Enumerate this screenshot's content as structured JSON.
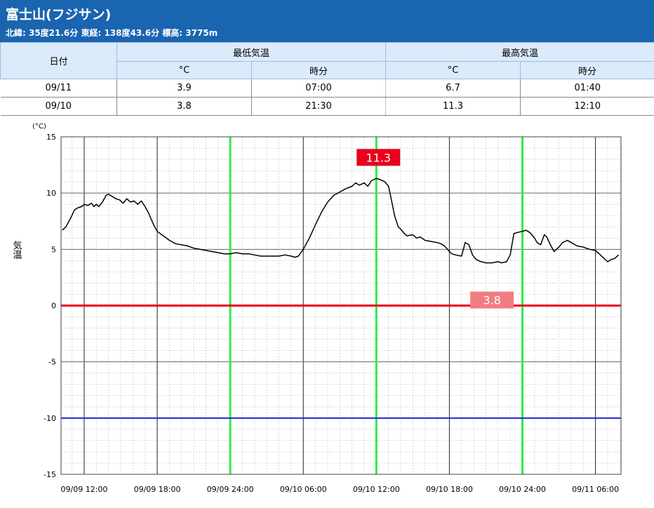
{
  "station": {
    "title": "富士山(フジサン)",
    "meta": "北緯: 35度21.6分 東経: 138度43.6分 標高: 3775m"
  },
  "table": {
    "date_header": "日付",
    "min_header": "最低気温",
    "max_header": "最高気温",
    "celsius_header": "°C",
    "time_header": "時分",
    "rows": [
      {
        "date": "09/11",
        "min_c": "3.9",
        "min_time": "07:00",
        "max_c": "6.7",
        "max_time": "01:40"
      },
      {
        "date": "09/10",
        "min_c": "3.8",
        "min_time": "21:30",
        "max_c": "11.3",
        "max_time": "12:10"
      }
    ]
  },
  "chart_data": {
    "type": "line",
    "unit": "(°C)",
    "ylabel": "気温",
    "ylim": [
      -15,
      15
    ],
    "yticks": [
      "15",
      "10",
      "5",
      "0",
      "-5",
      "-10",
      "-15"
    ],
    "xlim_hours": [
      -1.9,
      44.1
    ],
    "xticks": [
      {
        "h": 0,
        "label": "09/09 12:00"
      },
      {
        "h": 6,
        "label": "09/09 18:00"
      },
      {
        "h": 12,
        "label": "09/09 24:00"
      },
      {
        "h": 18,
        "label": "09/10 06:00"
      },
      {
        "h": 24,
        "label": "09/10 12:00"
      },
      {
        "h": 30,
        "label": "09/10 18:00"
      },
      {
        "h": 36,
        "label": "09/10 24:00"
      },
      {
        "h": 42,
        "label": "09/11 06:00"
      }
    ],
    "midnight_lines_hours": [
      12,
      36
    ],
    "noon_line_hours": [
      24
    ],
    "zero_line": 0,
    "minus10_line": -10,
    "annotations": [
      {
        "text": "11.3",
        "value": 11.3,
        "at_hours": 24.17,
        "color": "#e8001c"
      },
      {
        "text": "3.8",
        "value": 3.8,
        "at_hours": 33.5,
        "color": "#f07d80"
      }
    ],
    "colors": {
      "line": "#000000",
      "midnight": "#33e84a",
      "zero": "#e8001c",
      "minus10": "#2222dd"
    },
    "series": [
      {
        "x": [
          -1.8,
          -1.5,
          -1.1,
          -0.8,
          -0.5,
          -0.2,
          0.0,
          0.3,
          0.6,
          0.8,
          1.0,
          1.2,
          1.5,
          1.8,
          2.0,
          2.3,
          2.6,
          2.9,
          3.2,
          3.5,
          3.8,
          4.1,
          4.4,
          4.7,
          5.0,
          5.3,
          5.7,
          6.0,
          6.5,
          7.0,
          7.5,
          8.0,
          8.5,
          9.0,
          9.5,
          10.0,
          10.5,
          11.0,
          11.5,
          12.0,
          12.5,
          13.0,
          13.5,
          14.0,
          14.5,
          15.0,
          15.5,
          16.0,
          16.5,
          17.0,
          17.3,
          17.6,
          18.0,
          18.5,
          19.0,
          19.5,
          20.0,
          20.5,
          21.0,
          21.5,
          22.0,
          22.3,
          22.6,
          23.0,
          23.3,
          23.6,
          24.0,
          24.3,
          24.7,
          25.0,
          25.2,
          25.5,
          25.8,
          26.0,
          26.3,
          26.5,
          27.0,
          27.3,
          27.6,
          28.0,
          28.5,
          29.0,
          29.3,
          29.6,
          30.0,
          30.2,
          30.5,
          31.0,
          31.3,
          31.6,
          31.9,
          32.2,
          32.6,
          33.0,
          33.5,
          34.0,
          34.3,
          34.7,
          35.0,
          35.3,
          35.6,
          36.0,
          36.3,
          36.6,
          37.0,
          37.2,
          37.5,
          37.8,
          38.0,
          38.3,
          38.6,
          39.0,
          39.3,
          39.7,
          40.0,
          40.5,
          41.0,
          41.5,
          42.0,
          42.3,
          42.6,
          43.0,
          43.3,
          43.6,
          43.9
        ],
        "values": [
          6.7,
          7.0,
          7.8,
          8.5,
          8.7,
          8.8,
          9.0,
          8.9,
          9.1,
          8.8,
          9.0,
          8.8,
          9.2,
          9.8,
          9.9,
          9.7,
          9.5,
          9.4,
          9.1,
          9.5,
          9.2,
          9.3,
          9.0,
          9.3,
          8.8,
          8.2,
          7.2,
          6.6,
          6.2,
          5.8,
          5.5,
          5.4,
          5.3,
          5.1,
          5.0,
          4.9,
          4.8,
          4.7,
          4.6,
          4.6,
          4.7,
          4.6,
          4.6,
          4.5,
          4.4,
          4.4,
          4.4,
          4.4,
          4.5,
          4.4,
          4.3,
          4.4,
          5.0,
          6.0,
          7.2,
          8.3,
          9.2,
          9.8,
          10.1,
          10.4,
          10.6,
          10.9,
          10.7,
          10.9,
          10.6,
          11.1,
          11.3,
          11.2,
          11.0,
          10.6,
          9.6,
          8.0,
          7.0,
          6.8,
          6.4,
          6.2,
          6.3,
          6.0,
          6.1,
          5.8,
          5.7,
          5.6,
          5.5,
          5.3,
          4.8,
          4.6,
          4.5,
          4.4,
          5.6,
          5.4,
          4.5,
          4.1,
          3.9,
          3.8,
          3.8,
          3.9,
          3.8,
          3.9,
          4.5,
          6.4,
          6.5,
          6.6,
          6.7,
          6.5,
          6.0,
          5.6,
          5.4,
          6.3,
          6.1,
          5.4,
          4.8,
          5.2,
          5.6,
          5.8,
          5.6,
          5.3,
          5.2,
          5.0,
          4.9,
          4.6,
          4.3,
          3.9,
          4.1,
          4.2,
          4.5
        ]
      }
    ]
  }
}
